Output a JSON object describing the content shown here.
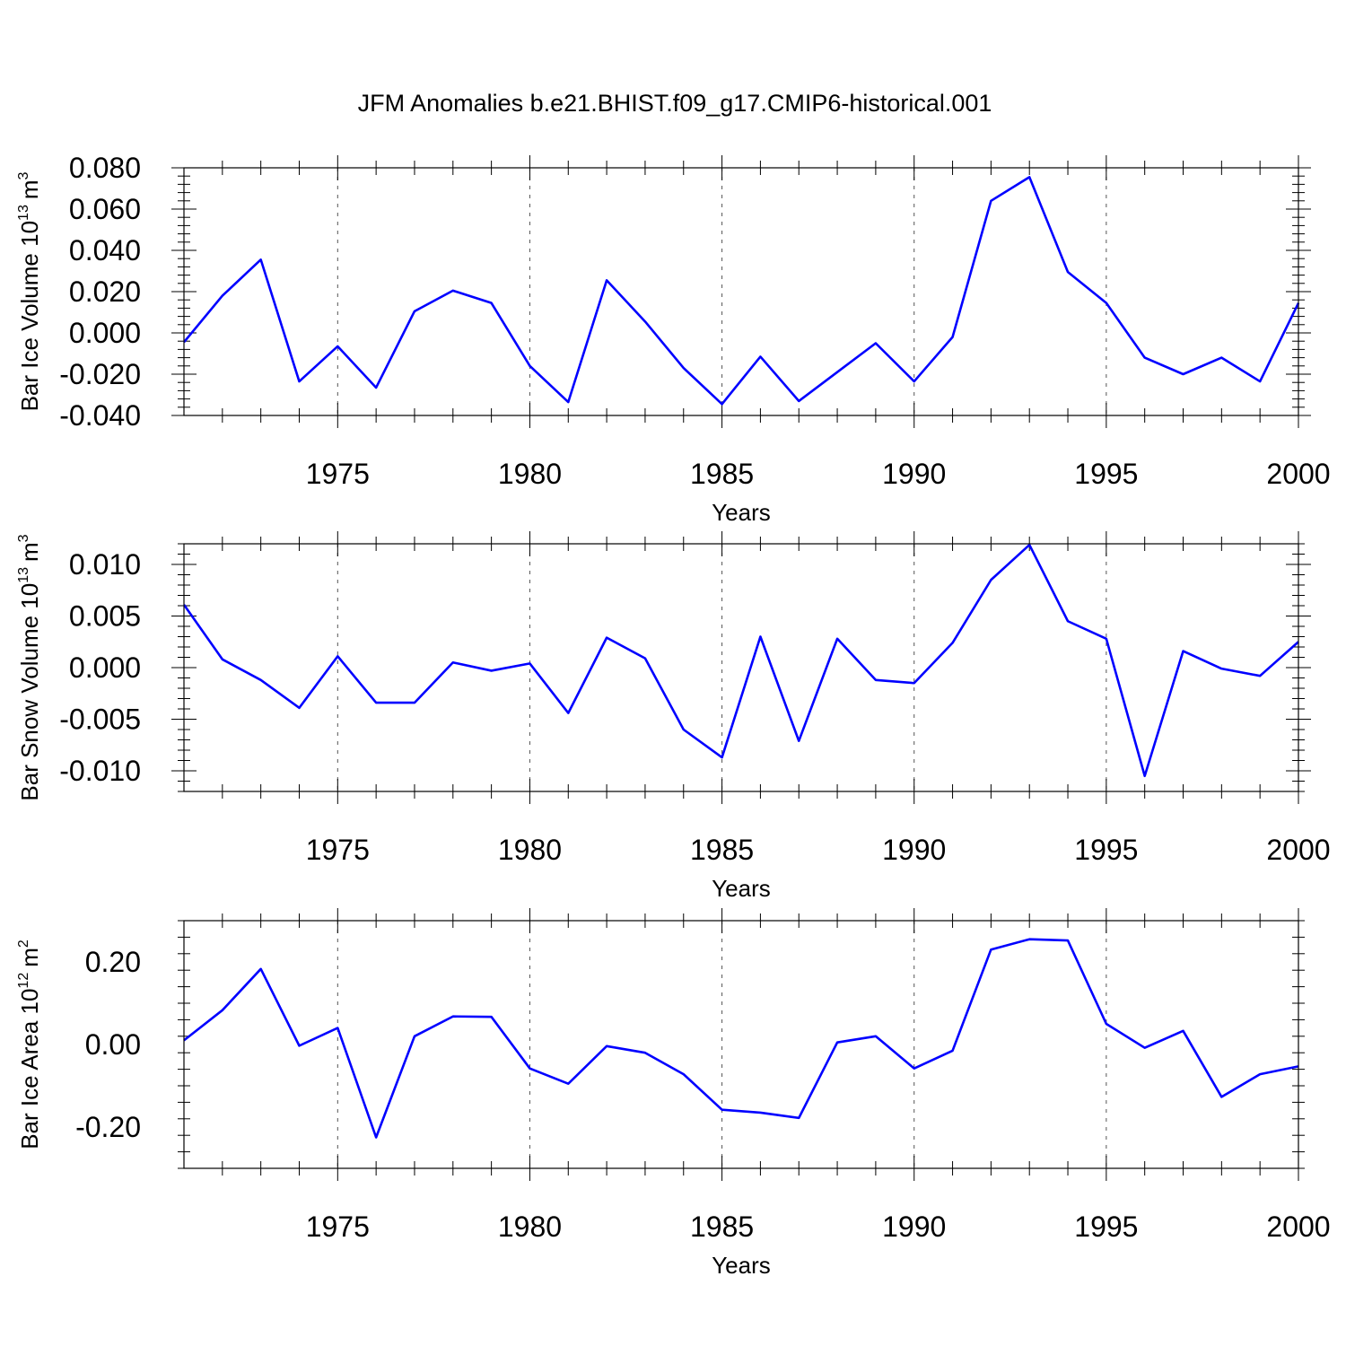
{
  "title": "JFM Anomalies b.e21.BHIST.f09_g17.CMIP6-historical.001",
  "colors": {
    "line": "#0000ff",
    "axis": "#000000",
    "grid": "#555555"
  },
  "chart_data": [
    {
      "type": "line",
      "ylabel": {
        "text": "Bar Ice Volume 10",
        "exp": "13",
        "unit": "m",
        "unit_exp": "3"
      },
      "xlabel": "Years",
      "xlim": [
        1971,
        2000
      ],
      "ylim": [
        -0.04,
        0.08
      ],
      "xticks": [
        1975,
        1980,
        1985,
        1990,
        1995,
        2000
      ],
      "yticks": [
        -0.04,
        -0.02,
        0.0,
        0.02,
        0.04,
        0.06,
        0.08
      ],
      "ytick_labels": [
        "-0.040",
        "-0.020",
        "0.000",
        "0.020",
        "0.040",
        "0.060",
        "0.080"
      ],
      "grid_x": [
        1975,
        1980,
        1985,
        1990,
        1995
      ],
      "series": [
        {
          "name": "Bar Ice Volume",
          "x": [
            1971,
            1972,
            1973,
            1974,
            1975,
            1976,
            1977,
            1978,
            1979,
            1980,
            1981,
            1982,
            1983,
            1984,
            1985,
            1986,
            1987,
            1988,
            1989,
            1990,
            1991,
            1992,
            1993,
            1994,
            1995,
            1996,
            1997,
            1998,
            1999,
            2000
          ],
          "values": [
            -0.0045,
            0.018,
            0.0355,
            -0.0235,
            -0.0065,
            -0.0265,
            0.0105,
            0.0205,
            0.0145,
            -0.016,
            -0.0335,
            0.0255,
            0.0055,
            -0.017,
            -0.0345,
            -0.0115,
            -0.033,
            -0.019,
            -0.005,
            -0.0235,
            -0.002,
            0.064,
            0.0755,
            0.0295,
            0.0145,
            -0.012,
            -0.02,
            -0.012,
            -0.0235,
            0.0145
          ]
        }
      ]
    },
    {
      "type": "line",
      "ylabel": {
        "text": "Bar Snow Volume 10",
        "exp": "13",
        "unit": "m",
        "unit_exp": "3"
      },
      "xlabel": "Years",
      "xlim": [
        1971,
        2000
      ],
      "ylim": [
        -0.012,
        0.012
      ],
      "xticks": [
        1975,
        1980,
        1985,
        1990,
        1995,
        2000
      ],
      "yticks": [
        -0.01,
        -0.005,
        0.0,
        0.005,
        0.01
      ],
      "ytick_labels": [
        "-0.010",
        "-0.005",
        "0.000",
        "0.005",
        "0.010"
      ],
      "grid_x": [
        1975,
        1980,
        1985,
        1990,
        1995
      ],
      "series": [
        {
          "name": "Bar Snow Volume",
          "x": [
            1971,
            1972,
            1973,
            1974,
            1975,
            1976,
            1977,
            1978,
            1979,
            1980,
            1981,
            1982,
            1983,
            1984,
            1985,
            1986,
            1987,
            1988,
            1989,
            1990,
            1991,
            1992,
            1993,
            1994,
            1995,
            1996,
            1997,
            1998,
            1999,
            2000
          ],
          "values": [
            0.0061,
            0.0008,
            -0.0012,
            -0.0039,
            0.0011,
            -0.0034,
            -0.0034,
            0.0005,
            -0.0003,
            0.0004,
            -0.0044,
            0.0029,
            0.0009,
            -0.006,
            -0.0087,
            0.003,
            -0.0071,
            0.0028,
            -0.0012,
            -0.0015,
            0.0024,
            0.0085,
            0.0119,
            0.0045,
            0.0028,
            -0.0105,
            0.0016,
            -0.0001,
            -0.0008,
            0.0025
          ]
        }
      ]
    },
    {
      "type": "line",
      "ylabel": {
        "text": "Bar Ice Area 10",
        "exp": "12",
        "unit": "m",
        "unit_exp": "2"
      },
      "xlabel": "Years",
      "xlim": [
        1971,
        2000
      ],
      "ylim": [
        -0.3,
        0.3
      ],
      "xticks": [
        1975,
        1980,
        1985,
        1990,
        1995,
        2000
      ],
      "yticks": [
        -0.2,
        0.0,
        0.2
      ],
      "ytick_labels": [
        "-0.20",
        "0.00",
        "0.20"
      ],
      "grid_x": [
        1975,
        1980,
        1985,
        1990,
        1995
      ],
      "series": [
        {
          "name": "Bar Ice Area",
          "x": [
            1971,
            1972,
            1973,
            1974,
            1975,
            1976,
            1977,
            1978,
            1979,
            1980,
            1981,
            1982,
            1983,
            1984,
            1985,
            1986,
            1987,
            1988,
            1989,
            1990,
            1991,
            1992,
            1993,
            1994,
            1995,
            1996,
            1997,
            1998,
            1999,
            2000
          ],
          "values": [
            0.01,
            0.083,
            0.183,
            -0.003,
            0.04,
            -0.225,
            0.02,
            0.068,
            0.067,
            -0.058,
            -0.095,
            -0.004,
            -0.02,
            -0.072,
            -0.158,
            -0.165,
            -0.178,
            0.005,
            0.02,
            -0.058,
            -0.015,
            0.23,
            0.255,
            0.252,
            0.05,
            -0.008,
            0.033,
            -0.127,
            -0.072,
            -0.053
          ]
        }
      ]
    }
  ]
}
